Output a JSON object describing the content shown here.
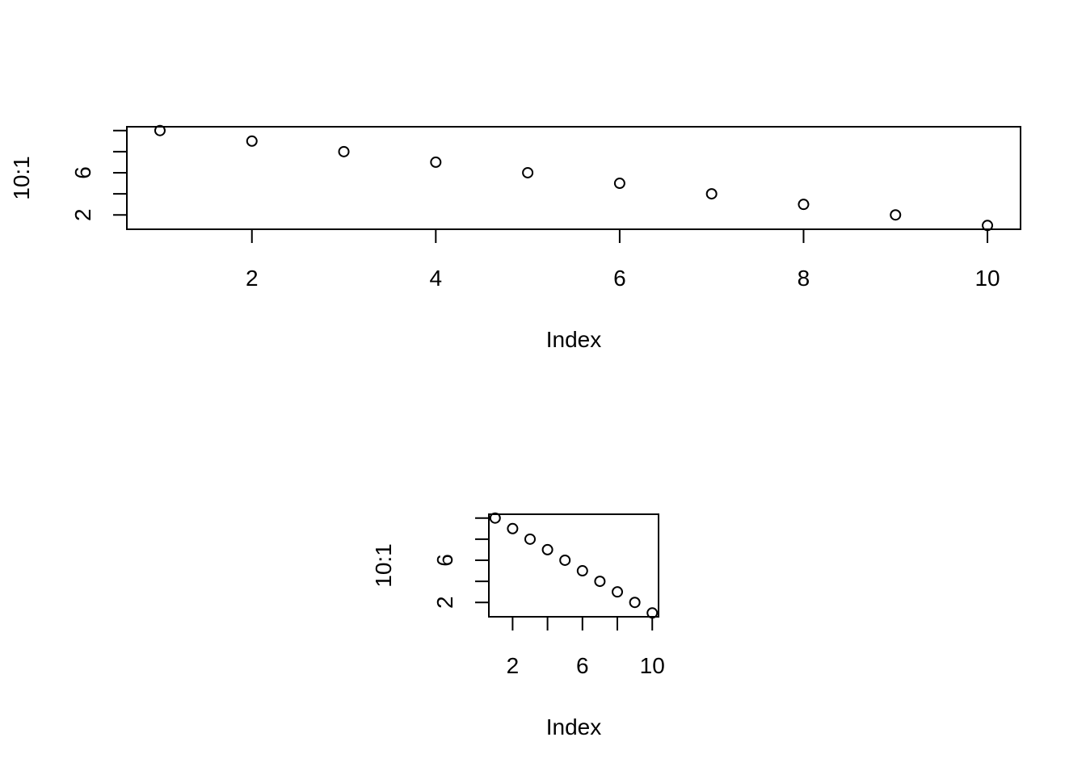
{
  "colors": {
    "background": "#ffffff",
    "ink": "#000000"
  },
  "chart_data": [
    {
      "type": "scatter",
      "title": "",
      "xlabel": "Index",
      "ylabel": "10:1",
      "x": [
        1,
        2,
        3,
        4,
        5,
        6,
        7,
        8,
        9,
        10
      ],
      "y": [
        10,
        9,
        8,
        7,
        6,
        5,
        4,
        3,
        2,
        1
      ],
      "xlim": [
        0.64,
        10.36
      ],
      "ylim": [
        0.64,
        10.36
      ],
      "x_ticks": [
        2,
        4,
        6,
        8,
        10
      ],
      "x_tick_labels": [
        "2",
        "4",
        "6",
        "8",
        "10"
      ],
      "y_ticks": [
        2,
        4,
        6,
        8,
        10
      ],
      "y_tick_labels": [
        "2",
        "",
        "6",
        "",
        ""
      ],
      "grid": false,
      "marker": "open-circle"
    },
    {
      "type": "scatter",
      "title": "",
      "xlabel": "Index",
      "ylabel": "10:1",
      "x": [
        1,
        2,
        3,
        4,
        5,
        6,
        7,
        8,
        9,
        10
      ],
      "y": [
        10,
        9,
        8,
        7,
        6,
        5,
        4,
        3,
        2,
        1
      ],
      "xlim": [
        0.64,
        10.36
      ],
      "ylim": [
        0.64,
        10.36
      ],
      "x_ticks": [
        2,
        4,
        6,
        8,
        10
      ],
      "x_tick_labels": [
        "2",
        "",
        "6",
        "",
        "10"
      ],
      "y_ticks": [
        2,
        4,
        6,
        8,
        10
      ],
      "y_tick_labels": [
        "2",
        "",
        "6",
        "",
        ""
      ],
      "grid": false,
      "marker": "open-circle"
    }
  ]
}
